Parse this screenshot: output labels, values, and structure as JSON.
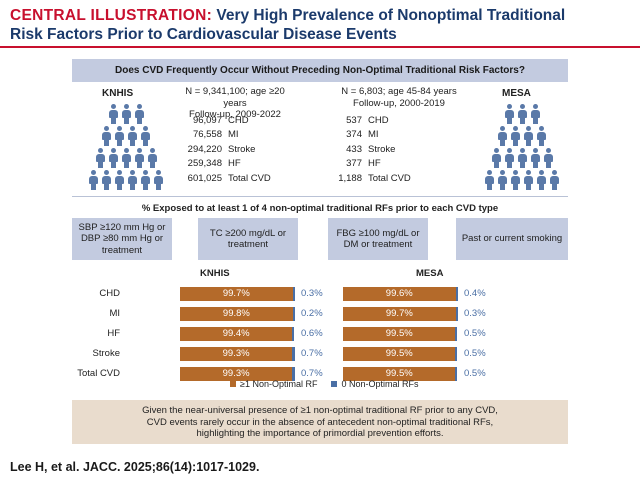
{
  "title": {
    "tag": "CENTRAL ILLUSTRATION:",
    "line1": "Very High Prevalence of Nonoptimal Traditional",
    "line2": "Risk Factors Prior to Cardiovascular Disease Events"
  },
  "question": "Does CVD Frequently Occur Without Preceding Non-Optimal Traditional Risk Factors?",
  "knhis": {
    "name": "KNHIS",
    "info1": "N = 9,341,100; age ≥20 years",
    "info2": "Follow-up, 2009-2022",
    "stats": [
      {
        "num": "96,097",
        "label": "CHD"
      },
      {
        "num": "76,558",
        "label": "MI"
      },
      {
        "num": "294,220",
        "label": "Stroke"
      },
      {
        "num": "259,348",
        "label": "HF"
      },
      {
        "num": "601,025",
        "label": "Total CVD"
      }
    ]
  },
  "mesa": {
    "name": "MESA",
    "info1": "N = 6,803; age 45-84 years",
    "info2": "Follow-up, 2000-2019",
    "stats": [
      {
        "num": "537",
        "label": "CHD"
      },
      {
        "num": "374",
        "label": "MI"
      },
      {
        "num": "433",
        "label": "Stroke"
      },
      {
        "num": "377",
        "label": "HF"
      },
      {
        "num": "1,188",
        "label": "Total CVD"
      }
    ]
  },
  "exposed_heading": "% Exposed to at least 1 of 4 non-optimal traditional RFs prior to each CVD type",
  "risk_factors": [
    "SBP ≥120 mm Hg or DBP ≥80 mm Hg or treatment",
    "TC ≥200 mg/dL or treatment",
    "FBG ≥100 mg/dL or DM or treatment",
    "Past or current smoking"
  ],
  "chart_data": {
    "type": "bar",
    "categories": [
      "CHD",
      "MI",
      "HF",
      "Stroke",
      "Total CVD"
    ],
    "panels": [
      {
        "name": "KNHIS",
        "series": [
          {
            "name": "≥1 Non-Optimal RF",
            "values": [
              99.7,
              99.8,
              99.4,
              99.3,
              99.3
            ],
            "labels": [
              "99.7%",
              "99.8%",
              "99.4%",
              "99.3%",
              "99.3%"
            ]
          },
          {
            "name": "0 Non-Optimal RFs",
            "values": [
              0.3,
              0.2,
              0.6,
              0.7,
              0.7
            ],
            "labels": [
              "0.3%",
              "0.2%",
              "0.6%",
              "0.7%",
              "0.7%"
            ]
          }
        ]
      },
      {
        "name": "MESA",
        "series": [
          {
            "name": "≥1 Non-Optimal RF",
            "values": [
              99.6,
              99.7,
              99.5,
              99.5,
              99.5
            ],
            "labels": [
              "99.6%",
              "99.7%",
              "99.5%",
              "99.5%",
              "99.5%"
            ]
          },
          {
            "name": "0 Non-Optimal RFs",
            "values": [
              0.4,
              0.3,
              0.5,
              0.5,
              0.5
            ],
            "labels": [
              "0.4%",
              "0.3%",
              "0.5%",
              "0.5%",
              "0.5%"
            ]
          }
        ]
      }
    ],
    "stacked": true,
    "xlim": [
      0,
      100
    ],
    "legend": "bottom",
    "colors": {
      "nonoptimal": "#b46a2a",
      "zero": "#4a6fa5"
    }
  },
  "legend": {
    "nonoptimal": "≥1 Non-Optimal RF",
    "zero": "0 Non-Optimal RFs"
  },
  "conclusion": {
    "line1": "Given the near-universal presence of ≥1 non-optimal traditional RF prior to any CVD,",
    "line2": "CVD events rarely occur in the absence of antecedent non-optimal traditional RFs,",
    "line3": "highlighting the importance of primordial prevention efforts."
  },
  "citation": "Lee H, et al. JACC. 2025;86(14):1017-1029."
}
